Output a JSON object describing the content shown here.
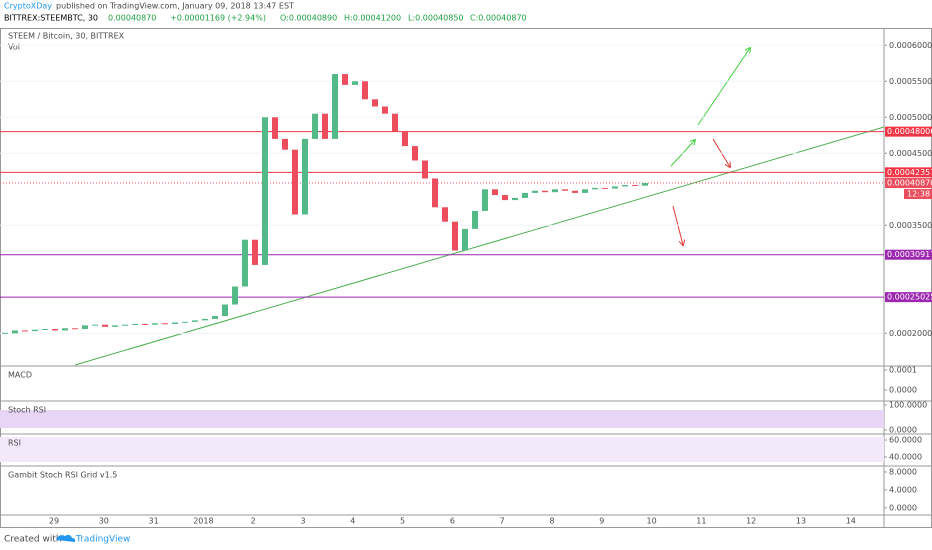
{
  "header": {
    "author": "CryptoXDay",
    "published": "published on TradingView.com, January 09, 2018 13:47 EST",
    "symbol": "BITTREX:STEEMBTC, 30",
    "last": "0.00040870",
    "change": "+0.00001169 (+2.94%)",
    "open": "O:0.00040890",
    "high": "H:0.00041200",
    "low": "L:0.00040850",
    "close": "C:0.00040870"
  },
  "chart_data": {
    "type": "candlestick",
    "title": "STEEM / Bitcoin, 30, BITTREX",
    "subtitle": "Vol",
    "close": [
      0.0002,
      0.000204,
      0.000203,
      0.000205,
      0.000206,
      0.000204,
      0.000207,
      0.000206,
      0.000211,
      0.000212,
      0.000209,
      0.000211,
      0.000212,
      0.000213,
      0.000212,
      0.000214,
      0.000213,
      0.000215,
      0.000216,
      0.000218,
      0.00022,
      0.000224,
      0.00024,
      0.000265,
      0.00033,
      0.000295,
      0.0005,
      0.00047,
      0.000455,
      0.000365,
      0.00047,
      0.000505,
      0.00047,
      0.00056,
      0.000545,
      0.00055,
      0.000525,
      0.000515,
      0.000505,
      0.00048,
      0.00046,
      0.00044,
      0.000415,
      0.000375,
      0.000355,
      0.000315,
      0.000345,
      0.00037,
      0.0004,
      0.000392,
      0.000385,
      0.000388,
      0.000395,
      0.000398,
      0.000396,
      0.0004,
      0.000398,
      0.000395,
      0.0004,
      0.000402,
      0.000401,
      0.000404,
      0.000406,
      0.000405,
      0.0004087
    ],
    "up_color": "#53b987",
    "down_color": "#eb4d5c",
    "ylim": [
      0.000156,
      0.000624
    ],
    "yticks": [
      {
        "value": 0.0002,
        "label": "0.00020000"
      },
      {
        "value": 0.00035,
        "label": "0.00035000"
      },
      {
        "value": 0.00045,
        "label": "0.00045000"
      },
      {
        "value": 0.0005,
        "label": "0.00050000"
      },
      {
        "value": 0.00055,
        "label": "0.00055000"
      },
      {
        "value": 0.0006,
        "label": "0.00060000"
      }
    ],
    "levels": [
      {
        "value": 0.00048006,
        "color": "#f23645"
      },
      {
        "value": 0.00042357,
        "color": "#f23645"
      },
      {
        "value": 0.00030917,
        "color": "#9c27b0"
      },
      {
        "value": 0.00025025,
        "color": "#9c27b0"
      }
    ],
    "current_price": {
      "value": 0.0004087,
      "label": "0.00040870"
    },
    "countdown": "12:38",
    "x_labels": [
      "29",
      "30",
      "31",
      "2018",
      "2",
      "3",
      "4",
      "5",
      "6",
      "7",
      "8",
      "9",
      "10",
      "11",
      "12",
      "13",
      "14"
    ]
  },
  "indicators": [
    {
      "name": "MACD",
      "ylim": [
        -5e-05,
        0.000115
      ],
      "ticks": [
        {
          "value": 0.0001,
          "label": "0.0001"
        },
        {
          "value": 0,
          "label": "0.0000"
        }
      ]
    },
    {
      "name": "Stoch RSI",
      "ylim": [
        -11.5,
        111.5
      ],
      "ticks": [
        {
          "value": 100,
          "label": "100.0000"
        },
        {
          "value": 0,
          "label": "0.0000"
        }
      ]
    },
    {
      "name": "RSI",
      "ylim": [
        30.6,
        65.9
      ],
      "ticks": [
        {
          "value": 60,
          "label": "60.0000"
        },
        {
          "value": 40,
          "label": "40.0000"
        }
      ]
    },
    {
      "name": "Gambit Stoch RSI Grid v1.5",
      "ylim": [
        -1.6,
        9.1
      ],
      "ticks": [
        {
          "value": 8,
          "label": "8.0000"
        },
        {
          "value": 4,
          "label": "4.0000"
        },
        {
          "value": 0,
          "label": "0.0000"
        }
      ]
    }
  ],
  "footer": {
    "created": "Created with",
    "brand": "TradingView"
  }
}
